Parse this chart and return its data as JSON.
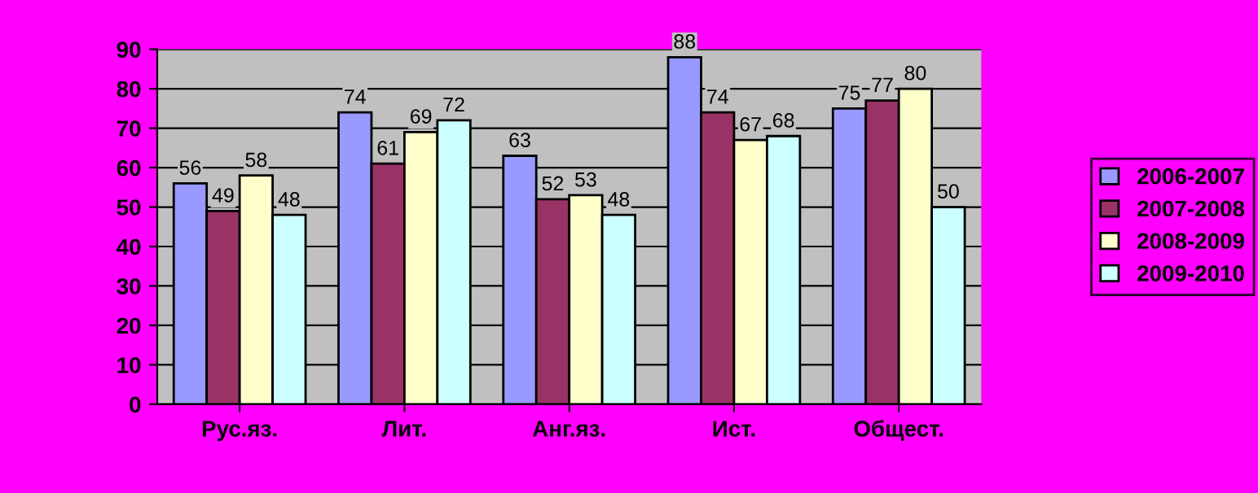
{
  "chart_data": {
    "type": "bar",
    "categories": [
      "Рус.яз.",
      "Лит.",
      "Анг.яз.",
      "Ист.",
      "Общест."
    ],
    "series": [
      {
        "name": "2006-2007",
        "color": "#9999ff",
        "values": [
          56,
          74,
          63,
          88,
          75
        ]
      },
      {
        "name": "2007-2008",
        "color": "#993366",
        "values": [
          49,
          61,
          52,
          74,
          77
        ]
      },
      {
        "name": "2008-2009",
        "color": "#ffffcc",
        "values": [
          58,
          69,
          53,
          67,
          80
        ]
      },
      {
        "name": "2009-2010",
        "color": "#ccffff",
        "values": [
          48,
          72,
          48,
          68,
          50
        ]
      }
    ],
    "ylim": [
      0,
      90
    ],
    "yticks": [
      0,
      10,
      20,
      30,
      40,
      50,
      60,
      70,
      80,
      90
    ],
    "grid": "y",
    "legend": "right",
    "data_labels": true
  }
}
